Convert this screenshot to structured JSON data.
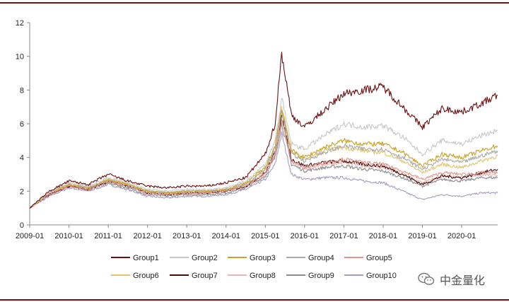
{
  "watermark": {
    "text": "中金量化",
    "icon": "wechat-icon"
  },
  "chart_data": {
    "type": "line",
    "title": "",
    "xlabel": "",
    "ylabel": "",
    "ylim": [
      0,
      12
    ],
    "yticks": [
      0,
      2,
      4,
      6,
      8,
      10,
      12
    ],
    "xlim": [
      "2009-01",
      "2020-12"
    ],
    "xticks": [
      "2009-01",
      "2010-01",
      "2011-01",
      "2012-01",
      "2013-01",
      "2014-01",
      "2015-01",
      "2016-01",
      "2017-01",
      "2018-01",
      "2019-01",
      "2020-01"
    ],
    "grid": false,
    "legend_position": "bottom",
    "x": [
      "2009-01",
      "2009-07",
      "2010-01",
      "2010-07",
      "2011-01",
      "2011-07",
      "2012-01",
      "2012-07",
      "2013-01",
      "2013-07",
      "2014-01",
      "2014-07",
      "2015-01",
      "2015-04",
      "2015-06",
      "2015-09",
      "2016-01",
      "2016-07",
      "2017-01",
      "2017-07",
      "2018-01",
      "2018-07",
      "2019-01",
      "2019-07",
      "2020-01",
      "2020-07",
      "2020-12"
    ],
    "series": [
      {
        "name": "Group1",
        "color": "#6b0f0f",
        "values": [
          1.0,
          2.0,
          2.6,
          2.4,
          3.0,
          2.6,
          2.3,
          2.2,
          2.3,
          2.3,
          2.5,
          2.8,
          4.2,
          6.0,
          10.2,
          6.5,
          5.8,
          6.8,
          7.8,
          8.0,
          8.2,
          7.0,
          5.8,
          6.9,
          6.7,
          7.2,
          7.7
        ]
      },
      {
        "name": "Group2",
        "color": "#c8c8c8",
        "values": [
          1.0,
          1.9,
          2.5,
          2.3,
          2.8,
          2.5,
          2.1,
          2.0,
          2.1,
          2.1,
          2.2,
          2.6,
          3.6,
          5.0,
          7.5,
          4.8,
          4.5,
          5.3,
          6.0,
          5.8,
          5.9,
          5.2,
          4.2,
          5.0,
          4.8,
          5.3,
          5.6
        ]
      },
      {
        "name": "Group3",
        "color": "#c9a227",
        "values": [
          1.0,
          1.9,
          2.4,
          2.2,
          2.7,
          2.4,
          2.0,
          1.9,
          2.0,
          2.0,
          2.1,
          2.5,
          3.4,
          4.7,
          7.0,
          4.4,
          4.0,
          4.6,
          5.0,
          4.8,
          4.8,
          4.3,
          3.5,
          4.2,
          4.0,
          4.4,
          4.7
        ]
      },
      {
        "name": "Group4",
        "color": "#a9a9a9",
        "values": [
          1.0,
          1.9,
          2.4,
          2.2,
          2.7,
          2.4,
          2.0,
          1.9,
          2.0,
          2.0,
          2.1,
          2.4,
          3.3,
          4.5,
          6.8,
          4.2,
          3.8,
          4.3,
          4.7,
          4.5,
          4.5,
          4.0,
          3.3,
          3.9,
          3.7,
          4.1,
          4.4
        ]
      },
      {
        "name": "Group5",
        "color": "#e3948a",
        "values": [
          1.0,
          1.8,
          2.3,
          2.1,
          2.6,
          2.3,
          1.9,
          1.8,
          1.9,
          1.9,
          2.0,
          2.3,
          3.1,
          4.2,
          6.3,
          3.8,
          3.4,
          3.7,
          3.9,
          3.7,
          3.6,
          3.2,
          2.7,
          3.1,
          3.0,
          3.1,
          3.1
        ]
      },
      {
        "name": "Group6",
        "color": "#e2c46e",
        "values": [
          1.0,
          1.9,
          2.4,
          2.2,
          2.7,
          2.4,
          2.0,
          1.9,
          2.0,
          2.0,
          2.1,
          2.4,
          3.3,
          4.6,
          6.9,
          4.3,
          3.9,
          4.4,
          4.6,
          4.4,
          4.3,
          3.8,
          3.1,
          3.6,
          3.4,
          3.8,
          4.1
        ]
      },
      {
        "name": "Group7",
        "color": "#4a0a0a",
        "values": [
          1.0,
          1.8,
          2.3,
          2.1,
          2.6,
          2.3,
          1.9,
          1.8,
          1.9,
          1.9,
          2.0,
          2.3,
          3.1,
          4.3,
          6.5,
          3.9,
          3.5,
          3.7,
          3.8,
          3.6,
          3.5,
          3.0,
          2.4,
          2.9,
          2.8,
          3.1,
          3.3
        ]
      },
      {
        "name": "Group8",
        "color": "#e8b4b4",
        "values": [
          1.0,
          1.8,
          2.3,
          2.1,
          2.6,
          2.3,
          1.9,
          1.8,
          1.9,
          1.9,
          2.0,
          2.3,
          3.0,
          4.2,
          6.3,
          3.8,
          3.3,
          3.6,
          3.7,
          3.5,
          3.4,
          3.0,
          2.5,
          2.9,
          2.8,
          3.0,
          2.9
        ]
      },
      {
        "name": "Group9",
        "color": "#8c8c8c",
        "values": [
          1.0,
          1.8,
          2.3,
          2.1,
          2.5,
          2.2,
          1.8,
          1.7,
          1.8,
          1.8,
          1.9,
          2.2,
          2.9,
          4.0,
          6.0,
          3.6,
          3.2,
          3.4,
          3.5,
          3.3,
          3.2,
          2.8,
          2.3,
          2.7,
          2.6,
          2.8,
          2.8
        ]
      },
      {
        "name": "Group10",
        "color": "#a99bc0",
        "values": [
          1.0,
          1.7,
          2.2,
          2.0,
          2.4,
          2.1,
          1.7,
          1.6,
          1.7,
          1.7,
          1.8,
          2.1,
          2.7,
          3.6,
          5.4,
          3.0,
          2.7,
          2.8,
          2.8,
          2.6,
          2.5,
          2.0,
          1.5,
          1.8,
          1.7,
          1.9,
          1.9
        ]
      }
    ]
  }
}
